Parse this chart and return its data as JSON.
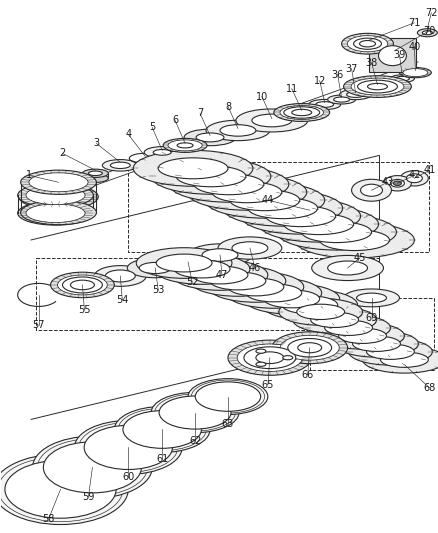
{
  "background_color": "#ffffff",
  "line_color": "#2a2a2a",
  "fig_width": 4.39,
  "fig_height": 5.33,
  "dpi": 100,
  "shaft_color": "#2a2a2a",
  "gear_fill": "#e8e8e8",
  "ring_fill": "#f5f5f5",
  "label_fontsize": 7.0,
  "label_color": "#1a1a1a",
  "leader_lw": 0.5,
  "component_lw": 0.8,
  "shaft_lw": 0.7
}
